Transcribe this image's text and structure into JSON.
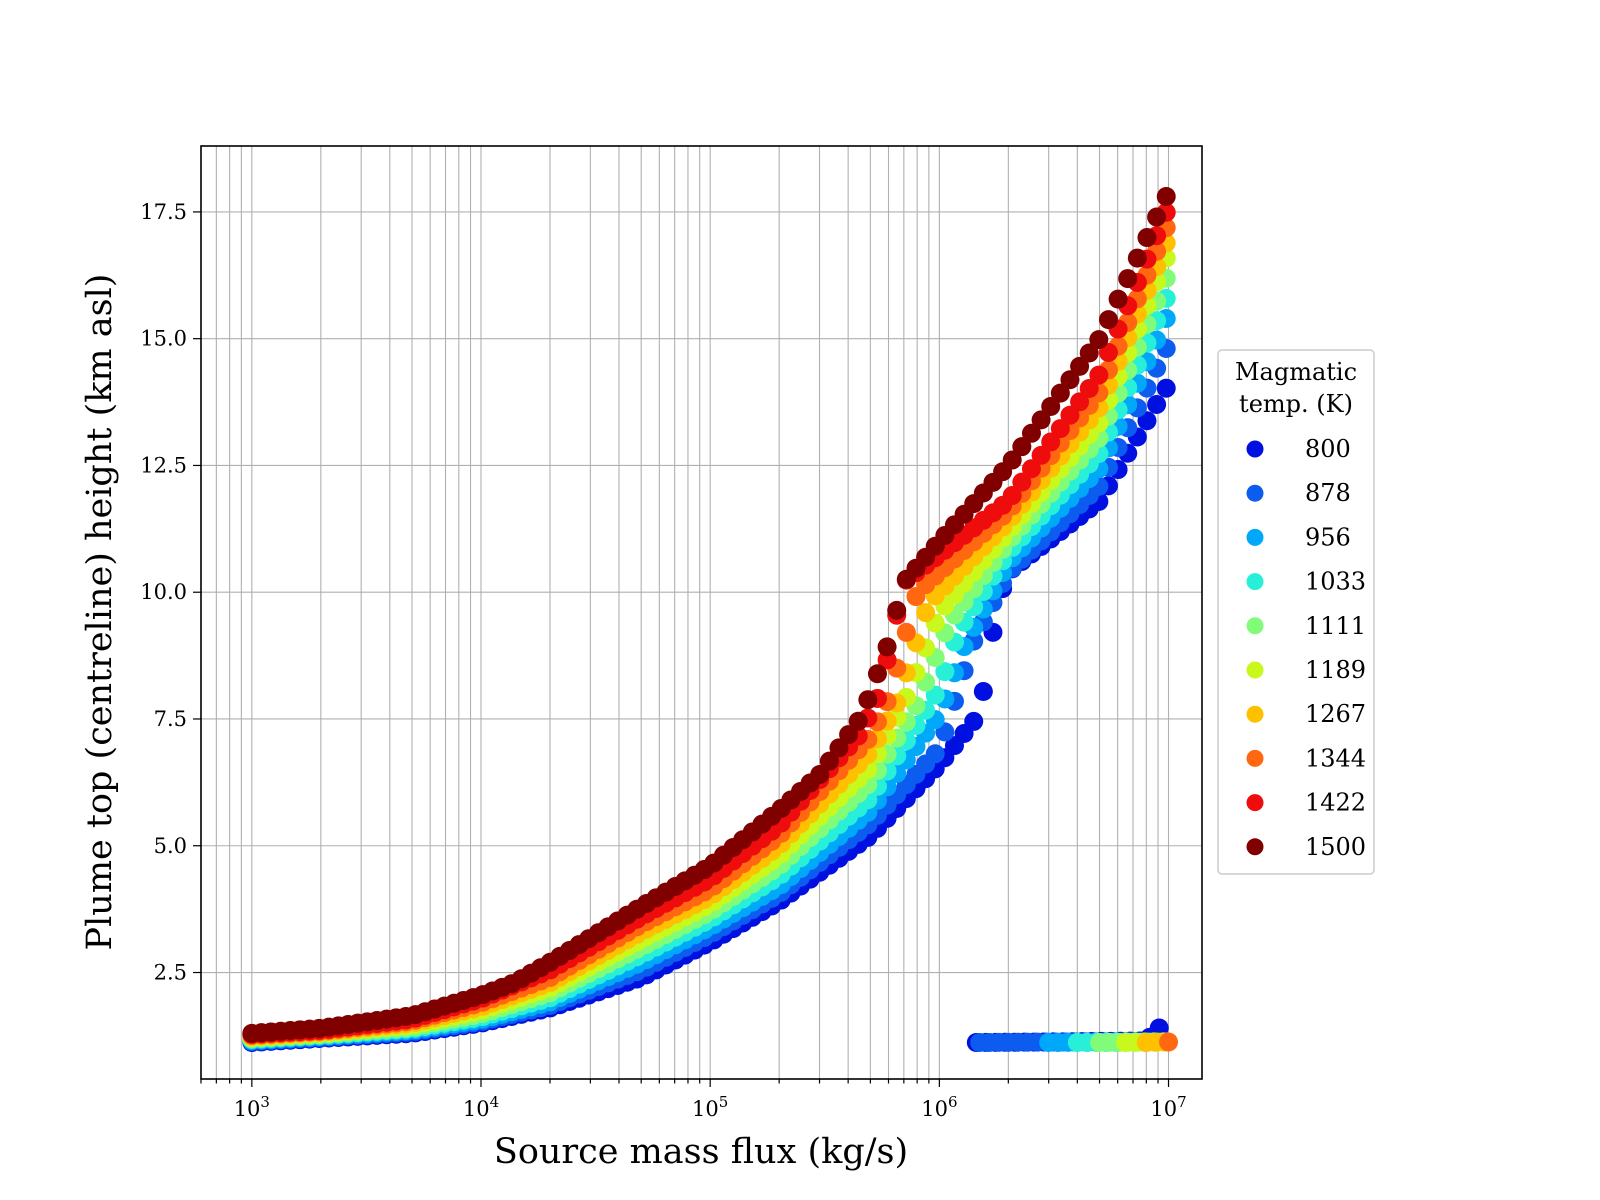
{
  "chart_data": {
    "type": "scatter",
    "title": "",
    "xlabel": "Source mass flux (kg/s)",
    "ylabel": "Plume top (centreline) height (km asl)",
    "x_scale": "log",
    "xlim": [
      600,
      14000000
    ],
    "ylim": [
      0.4,
      18.8
    ],
    "x_ticks": [
      1000,
      10000,
      100000,
      1000000,
      10000000
    ],
    "x_tick_labels": [
      "10^3",
      "10^4",
      "10^5",
      "10^6",
      "10^7"
    ],
    "y_ticks": [
      2.5,
      5.0,
      7.5,
      10.0,
      12.5,
      15.0,
      17.5
    ],
    "y_tick_labels": [
      "2.5",
      "5.0",
      "7.5",
      "10.0",
      "12.5",
      "15.0",
      "17.5"
    ],
    "grid": true,
    "legend": {
      "title": [
        "Magmatic",
        "temp. (K)"
      ],
      "placement": "right-outside"
    },
    "series": [
      {
        "name": "800",
        "color": "#0010e0",
        "main": [
          [
            1000,
            1.12
          ],
          [
            2000,
            1.2
          ],
          [
            5000,
            1.3
          ],
          [
            10000,
            1.5
          ],
          [
            20000,
            1.8
          ],
          [
            50000,
            2.4
          ],
          [
            100000,
            3.1
          ],
          [
            200000,
            3.9
          ],
          [
            500000,
            5.2
          ],
          [
            1000000,
            6.6
          ],
          [
            1500000,
            7.6
          ],
          [
            1800000,
            9.8
          ],
          [
            2000000,
            10.4
          ],
          [
            5000000,
            11.8
          ],
          [
            10000000,
            14.1
          ]
        ],
        "branch": [
          [
            1450000,
            1.12
          ],
          [
            3000000,
            1.13
          ],
          [
            8000000,
            1.15
          ],
          [
            9000000,
            1.4
          ],
          [
            10000000,
            1.45
          ]
        ]
      },
      {
        "name": "878",
        "color": "#0c5cf0",
        "main": [
          [
            1000,
            1.14
          ],
          [
            2000,
            1.22
          ],
          [
            5000,
            1.33
          ],
          [
            10000,
            1.53
          ],
          [
            20000,
            1.85
          ],
          [
            50000,
            2.55
          ],
          [
            100000,
            3.25
          ],
          [
            200000,
            4.05
          ],
          [
            500000,
            5.45
          ],
          [
            1000000,
            6.9
          ],
          [
            1400000,
            9.0
          ],
          [
            2000000,
            10.4
          ],
          [
            5000000,
            12.1
          ],
          [
            10000000,
            14.9
          ]
        ],
        "branch": [
          [
            1500000,
            1.12
          ],
          [
            10000000,
            1.14
          ]
        ]
      },
      {
        "name": "956",
        "color": "#00a8fa",
        "main": [
          [
            1000,
            1.16
          ],
          [
            2000,
            1.24
          ],
          [
            5000,
            1.36
          ],
          [
            10000,
            1.57
          ],
          [
            20000,
            1.92
          ],
          [
            50000,
            2.7
          ],
          [
            100000,
            3.4
          ],
          [
            200000,
            4.2
          ],
          [
            500000,
            5.7
          ],
          [
            1000000,
            7.6
          ],
          [
            1300000,
            9.0
          ],
          [
            2000000,
            10.6
          ],
          [
            5000000,
            12.45
          ],
          [
            10000000,
            15.5
          ]
        ],
        "branch": [
          [
            3000000,
            1.12
          ],
          [
            10000000,
            1.13
          ]
        ]
      },
      {
        "name": "1033",
        "color": "#28f0d8",
        "main": [
          [
            1000,
            1.18
          ],
          [
            2000,
            1.26
          ],
          [
            5000,
            1.39
          ],
          [
            10000,
            1.62
          ],
          [
            20000,
            2.0
          ],
          [
            50000,
            2.85
          ],
          [
            100000,
            3.55
          ],
          [
            200000,
            4.4
          ],
          [
            500000,
            5.95
          ],
          [
            1000000,
            8.1
          ],
          [
            1200000,
            9.2
          ],
          [
            2000000,
            10.8
          ],
          [
            5000000,
            12.75
          ],
          [
            10000000,
            15.9
          ]
        ],
        "branch": [
          [
            4000000,
            1.12
          ],
          [
            10000000,
            1.13
          ]
        ]
      },
      {
        "name": "1111",
        "color": "#80fc78",
        "main": [
          [
            1000,
            1.2
          ],
          [
            2000,
            1.28
          ],
          [
            5000,
            1.42
          ],
          [
            10000,
            1.68
          ],
          [
            20000,
            2.1
          ],
          [
            50000,
            3.0
          ],
          [
            100000,
            3.7
          ],
          [
            200000,
            4.6
          ],
          [
            500000,
            6.25
          ],
          [
            800000,
            7.8
          ],
          [
            1100000,
            9.4
          ],
          [
            2000000,
            11.0
          ],
          [
            5000000,
            13.05
          ],
          [
            10000000,
            16.3
          ]
        ],
        "branch": [
          [
            5000000,
            1.12
          ],
          [
            10000000,
            1.13
          ]
        ]
      },
      {
        "name": "1189",
        "color": "#c8f81c",
        "main": [
          [
            1000,
            1.22
          ],
          [
            2000,
            1.3
          ],
          [
            5000,
            1.46
          ],
          [
            10000,
            1.75
          ],
          [
            20000,
            2.2
          ],
          [
            50000,
            3.15
          ],
          [
            100000,
            3.85
          ],
          [
            200000,
            4.8
          ],
          [
            500000,
            6.55
          ],
          [
            700000,
            7.8
          ],
          [
            1000000,
            9.6
          ],
          [
            2000000,
            11.2
          ],
          [
            5000000,
            13.35
          ],
          [
            10000000,
            16.7
          ]
        ],
        "branch": [
          [
            6500000,
            1.12
          ],
          [
            10000000,
            1.13
          ]
        ]
      },
      {
        "name": "1267",
        "color": "#ffc000",
        "main": [
          [
            1000,
            1.24
          ],
          [
            2000,
            1.32
          ],
          [
            5000,
            1.5
          ],
          [
            10000,
            1.82
          ],
          [
            20000,
            2.3
          ],
          [
            50000,
            3.3
          ],
          [
            100000,
            4.0
          ],
          [
            200000,
            5.0
          ],
          [
            500000,
            6.85
          ],
          [
            650000,
            7.8
          ],
          [
            900000,
            9.8
          ],
          [
            2000000,
            11.4
          ],
          [
            5000000,
            13.65
          ],
          [
            10000000,
            17.0
          ]
        ],
        "branch": [
          [
            8000000,
            1.12
          ],
          [
            10000000,
            1.13
          ]
        ]
      },
      {
        "name": "1344",
        "color": "#ff6810",
        "main": [
          [
            1000,
            1.26
          ],
          [
            2000,
            1.34
          ],
          [
            5000,
            1.54
          ],
          [
            10000,
            1.9
          ],
          [
            20000,
            2.4
          ],
          [
            50000,
            3.45
          ],
          [
            100000,
            4.15
          ],
          [
            200000,
            5.2
          ],
          [
            500000,
            7.15
          ],
          [
            600000,
            7.9
          ],
          [
            800000,
            10.0
          ],
          [
            2000000,
            11.6
          ],
          [
            5000000,
            13.95
          ],
          [
            10000000,
            17.3
          ]
        ],
        "branch": [
          [
            10000000,
            1.13
          ]
        ]
      },
      {
        "name": "1422",
        "color": "#ee0c0c",
        "main": [
          [
            1000,
            1.28
          ],
          [
            2000,
            1.36
          ],
          [
            5000,
            1.58
          ],
          [
            10000,
            1.98
          ],
          [
            20000,
            2.55
          ],
          [
            50000,
            3.6
          ],
          [
            100000,
            4.35
          ],
          [
            200000,
            5.4
          ],
          [
            450000,
            7.2
          ],
          [
            550000,
            8.0
          ],
          [
            700000,
            10.2
          ],
          [
            2000000,
            11.8
          ],
          [
            5000000,
            14.3
          ],
          [
            10000000,
            17.6
          ]
        ],
        "branch": []
      },
      {
        "name": "1500",
        "color": "#800000",
        "main": [
          [
            1000,
            1.3
          ],
          [
            2000,
            1.4
          ],
          [
            5000,
            1.65
          ],
          [
            10000,
            2.05
          ],
          [
            14000,
            2.3
          ],
          [
            20000,
            2.7
          ],
          [
            50000,
            3.8
          ],
          [
            100000,
            4.6
          ],
          [
            200000,
            5.7
          ],
          [
            300000,
            6.4
          ],
          [
            450000,
            7.5
          ],
          [
            500000,
            8.0
          ],
          [
            600000,
            9.0
          ],
          [
            700000,
            10.2
          ],
          [
            1000000,
            11.0
          ],
          [
            2000000,
            12.5
          ],
          [
            5000000,
            15.0
          ],
          [
            10000000,
            17.9
          ]
        ],
        "branch": []
      }
    ]
  }
}
